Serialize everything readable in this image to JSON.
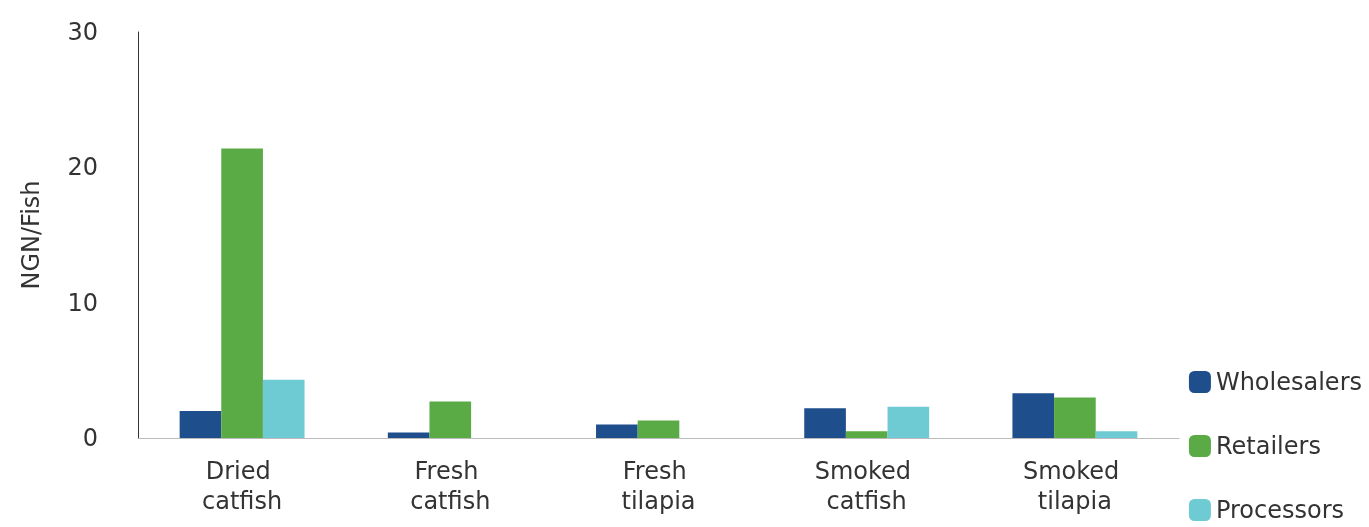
{
  "chart_data": {
    "type": "bar",
    "ylabel": "NGN/Fish",
    "categories": [
      "Dried catfish",
      "Fresh catfish",
      "Fresh tilapia",
      "Smoked catfish",
      "Smoked tilapia"
    ],
    "series": [
      {
        "name": "Wholesalers",
        "color": "#1f4e8c",
        "values": [
          2.0,
          0.4,
          1.0,
          2.2,
          3.3
        ]
      },
      {
        "name": "Retailers",
        "color": "#5aab46",
        "values": [
          21.4,
          2.7,
          1.3,
          0.5,
          3.0
        ]
      },
      {
        "name": "Processors",
        "color": "#6fcbd3",
        "values": [
          4.3,
          null,
          null,
          2.3,
          0.5
        ]
      }
    ],
    "ylim": [
      0,
      30
    ],
    "yticks": [
      0,
      10,
      20,
      30
    ],
    "grid": false,
    "legend": "bottom right"
  }
}
